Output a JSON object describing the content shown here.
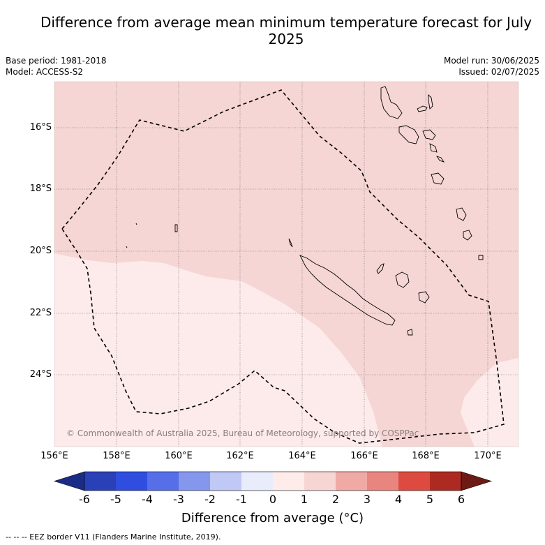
{
  "title": "Difference from average mean minimum temperature forecast for July 2025",
  "meta_left": {
    "base_period": "Base period: 1981-2018",
    "model": "Model: ACCESS-S2"
  },
  "meta_right": {
    "model_run": "Model run: 30/06/2025",
    "issued": "Issued: 02/07/2025"
  },
  "copyright": "© Commonwealth of Australia 2025, Bureau of Meteorology, supported by COSPPac",
  "axes": {
    "lat_labels": [
      "16°S",
      "18°S",
      "20°S",
      "22°S",
      "24°S"
    ],
    "lon_labels": [
      "156°E",
      "158°E",
      "160°E",
      "162°E",
      "164°E",
      "166°E",
      "168°E",
      "170°E"
    ]
  },
  "colorbar": {
    "label": "Difference from average (°C)",
    "ticks": [
      "-6",
      "-5",
      "-4",
      "-3",
      "-2",
      "-1",
      "0",
      "1",
      "2",
      "3",
      "4",
      "5",
      "6"
    ],
    "colors": [
      "#1b2c86",
      "#2a40b6",
      "#2f4ee0",
      "#566ee8",
      "#8497ec",
      "#c0c8f5",
      "#e8ecfb",
      "#fdecea",
      "#f7d5d3",
      "#efaaa6",
      "#e8857e",
      "#dc4a40",
      "#ad2a22",
      "#6e1a14"
    ]
  },
  "legend_footer": "-- -- -- EEZ border V11 (Flanders Marine Institute, 2019).",
  "map": {
    "region": "New Caledonia EEZ",
    "fill_colors": {
      "range_1_2": "#f5d6d4",
      "range_0_1": "#fcebea"
    }
  }
}
